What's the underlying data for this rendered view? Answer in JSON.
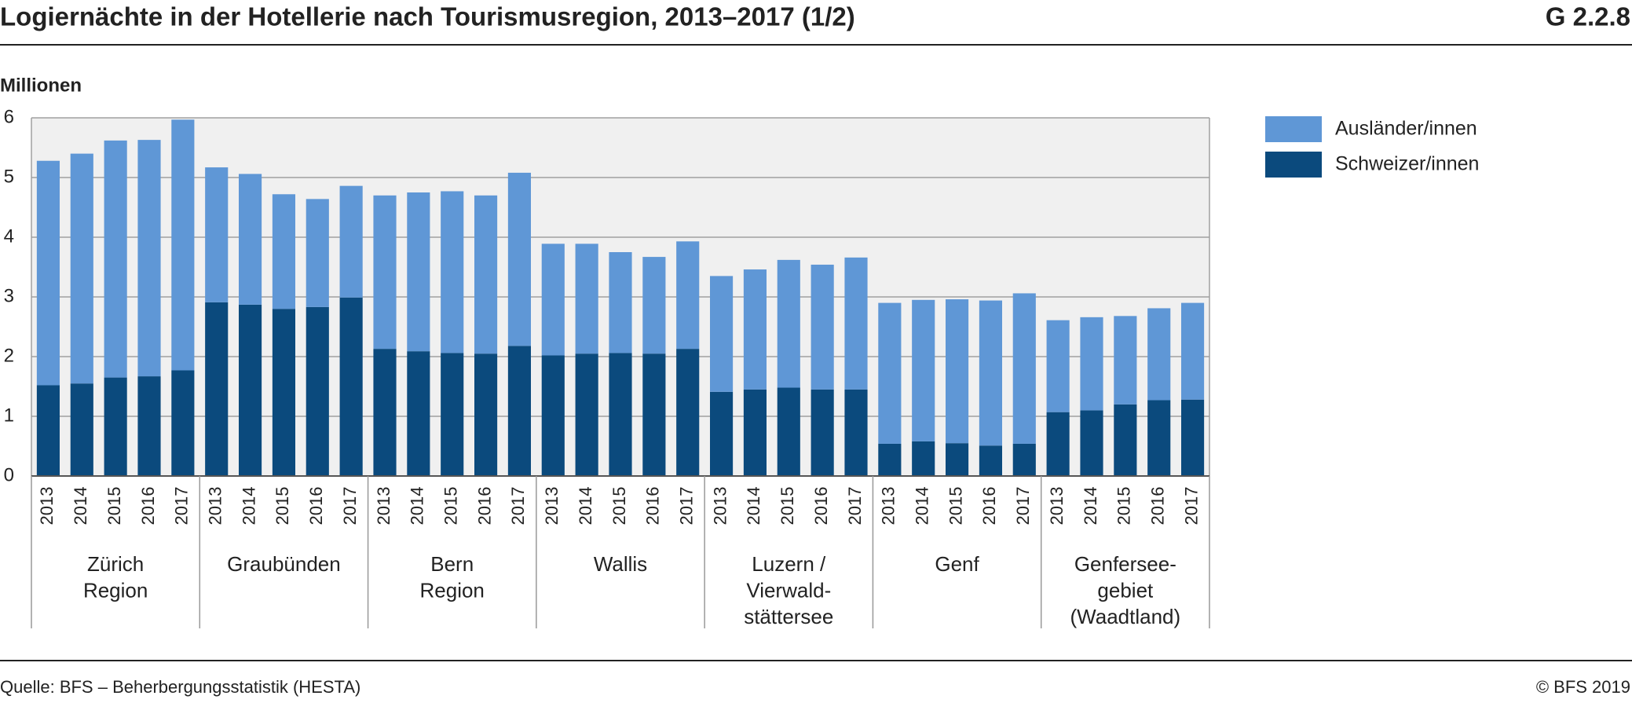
{
  "chart_data": {
    "type": "bar",
    "stacked": true,
    "title": "Logiernächte in der Hotellerie nach Tourismusregion, 2013–2017 (1/2)",
    "chart_id": "G 2.2.8",
    "y_label": "Millionen",
    "source": "Quelle: BFS – Beherbergungsstatistik (HESTA)",
    "copyright": "© BFS 2019",
    "categories": [
      "2013",
      "2014",
      "2015",
      "2016",
      "2017",
      "2013",
      "2014",
      "2015",
      "2016",
      "2017",
      "2013",
      "2014",
      "2015",
      "2016",
      "2017",
      "2013",
      "2014",
      "2015",
      "2016",
      "2017",
      "2013",
      "2014",
      "2015",
      "2016",
      "2017",
      "2013",
      "2014",
      "2015",
      "2016",
      "2017",
      "2013",
      "2014",
      "2015",
      "2016",
      "2017"
    ],
    "groups": [
      [
        "Zürich",
        "Region"
      ],
      [
        "Graubünden"
      ],
      [
        "Bern",
        "Region"
      ],
      [
        "Wallis"
      ],
      [
        "Luzern /",
        "Vierwald-",
        "stättersee"
      ],
      [
        "Genf"
      ],
      [
        "Genfersee-",
        "gebiet",
        "(Waadtland)"
      ]
    ],
    "series": [
      {
        "name": "Schweizer/innen",
        "color": "#0b4a7d",
        "values": [
          1.52,
          1.55,
          1.65,
          1.67,
          1.77,
          2.91,
          2.87,
          2.8,
          2.83,
          2.99,
          2.13,
          2.09,
          2.06,
          2.05,
          2.18,
          2.02,
          2.05,
          2.06,
          2.05,
          2.13,
          1.41,
          1.45,
          1.48,
          1.45,
          1.45,
          0.54,
          0.58,
          0.55,
          0.51,
          0.54,
          1.07,
          1.1,
          1.2,
          1.27,
          1.28
        ]
      },
      {
        "name": "Ausländer/innen",
        "color": "#5f97d6",
        "values": [
          3.76,
          3.85,
          3.97,
          3.96,
          4.2,
          2.26,
          2.19,
          1.92,
          1.81,
          1.87,
          2.57,
          2.66,
          2.71,
          2.65,
          2.9,
          1.87,
          1.84,
          1.69,
          1.62,
          1.8,
          1.94,
          2.01,
          2.14,
          2.09,
          2.21,
          2.36,
          2.37,
          2.41,
          2.43,
          2.52,
          1.54,
          1.56,
          1.48,
          1.54,
          1.62
        ]
      }
    ],
    "ylim": [
      0,
      6
    ],
    "yticks": [
      0,
      1,
      2,
      3,
      4,
      5,
      6
    ],
    "grid": true
  }
}
